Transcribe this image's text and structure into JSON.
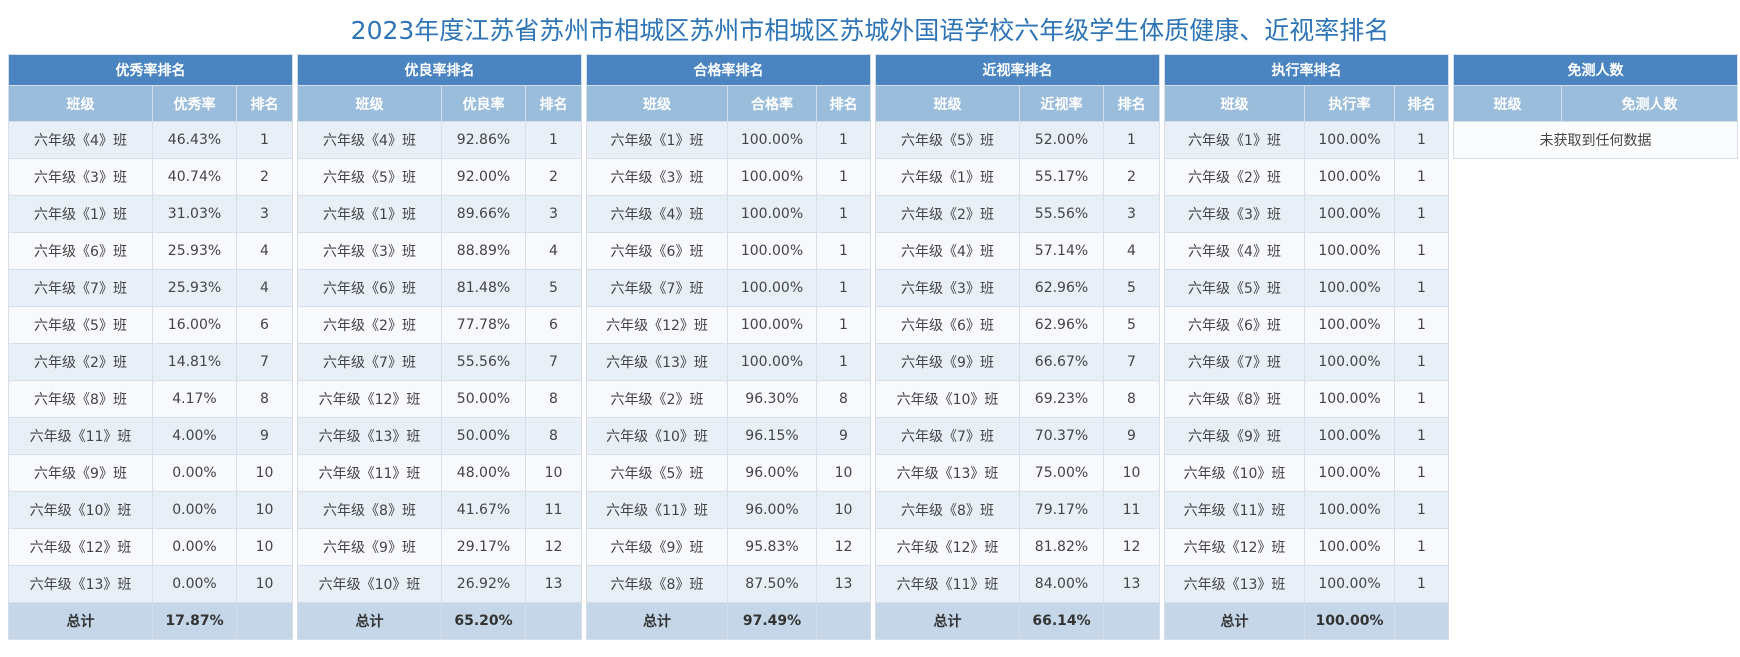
{
  "title": "2023年度江苏省苏州市相城区苏州市相城区苏城外国语学校六年级学生体质健康、近视率排名",
  "panels": [
    {
      "title": "优秀率排名",
      "headers": [
        "班级",
        "优秀率",
        "排名"
      ],
      "rows": [
        [
          "六年级《4》班",
          "46.43%",
          "1"
        ],
        [
          "六年级《3》班",
          "40.74%",
          "2"
        ],
        [
          "六年级《1》班",
          "31.03%",
          "3"
        ],
        [
          "六年级《6》班",
          "25.93%",
          "4"
        ],
        [
          "六年级《7》班",
          "25.93%",
          "4"
        ],
        [
          "六年级《5》班",
          "16.00%",
          "6"
        ],
        [
          "六年级《2》班",
          "14.81%",
          "7"
        ],
        [
          "六年级《8》班",
          "4.17%",
          "8"
        ],
        [
          "六年级《11》班",
          "4.00%",
          "9"
        ],
        [
          "六年级《9》班",
          "0.00%",
          "10"
        ],
        [
          "六年级《10》班",
          "0.00%",
          "10"
        ],
        [
          "六年级《12》班",
          "0.00%",
          "10"
        ],
        [
          "六年级《13》班",
          "0.00%",
          "10"
        ]
      ],
      "total": [
        "总计",
        "17.87%",
        ""
      ]
    },
    {
      "title": "优良率排名",
      "headers": [
        "班级",
        "优良率",
        "排名"
      ],
      "rows": [
        [
          "六年级《4》班",
          "92.86%",
          "1"
        ],
        [
          "六年级《5》班",
          "92.00%",
          "2"
        ],
        [
          "六年级《1》班",
          "89.66%",
          "3"
        ],
        [
          "六年级《3》班",
          "88.89%",
          "4"
        ],
        [
          "六年级《6》班",
          "81.48%",
          "5"
        ],
        [
          "六年级《2》班",
          "77.78%",
          "6"
        ],
        [
          "六年级《7》班",
          "55.56%",
          "7"
        ],
        [
          "六年级《12》班",
          "50.00%",
          "8"
        ],
        [
          "六年级《13》班",
          "50.00%",
          "8"
        ],
        [
          "六年级《11》班",
          "48.00%",
          "10"
        ],
        [
          "六年级《8》班",
          "41.67%",
          "11"
        ],
        [
          "六年级《9》班",
          "29.17%",
          "12"
        ],
        [
          "六年级《10》班",
          "26.92%",
          "13"
        ]
      ],
      "total": [
        "总计",
        "65.20%",
        ""
      ]
    },
    {
      "title": "合格率排名",
      "headers": [
        "班级",
        "合格率",
        "排名"
      ],
      "rows": [
        [
          "六年级《1》班",
          "100.00%",
          "1"
        ],
        [
          "六年级《3》班",
          "100.00%",
          "1"
        ],
        [
          "六年级《4》班",
          "100.00%",
          "1"
        ],
        [
          "六年级《6》班",
          "100.00%",
          "1"
        ],
        [
          "六年级《7》班",
          "100.00%",
          "1"
        ],
        [
          "六年级《12》班",
          "100.00%",
          "1"
        ],
        [
          "六年级《13》班",
          "100.00%",
          "1"
        ],
        [
          "六年级《2》班",
          "96.30%",
          "8"
        ],
        [
          "六年级《10》班",
          "96.15%",
          "9"
        ],
        [
          "六年级《5》班",
          "96.00%",
          "10"
        ],
        [
          "六年级《11》班",
          "96.00%",
          "10"
        ],
        [
          "六年级《9》班",
          "95.83%",
          "12"
        ],
        [
          "六年级《8》班",
          "87.50%",
          "13"
        ]
      ],
      "total": [
        "总计",
        "97.49%",
        ""
      ]
    },
    {
      "title": "近视率排名",
      "headers": [
        "班级",
        "近视率",
        "排名"
      ],
      "rows": [
        [
          "六年级《5》班",
          "52.00%",
          "1"
        ],
        [
          "六年级《1》班",
          "55.17%",
          "2"
        ],
        [
          "六年级《2》班",
          "55.56%",
          "3"
        ],
        [
          "六年级《4》班",
          "57.14%",
          "4"
        ],
        [
          "六年级《3》班",
          "62.96%",
          "5"
        ],
        [
          "六年级《6》班",
          "62.96%",
          "5"
        ],
        [
          "六年级《9》班",
          "66.67%",
          "7"
        ],
        [
          "六年级《10》班",
          "69.23%",
          "8"
        ],
        [
          "六年级《7》班",
          "70.37%",
          "9"
        ],
        [
          "六年级《13》班",
          "75.00%",
          "10"
        ],
        [
          "六年级《8》班",
          "79.17%",
          "11"
        ],
        [
          "六年级《12》班",
          "81.82%",
          "12"
        ],
        [
          "六年级《11》班",
          "84.00%",
          "13"
        ]
      ],
      "total": [
        "总计",
        "66.14%",
        ""
      ]
    },
    {
      "title": "执行率排名",
      "headers": [
        "班级",
        "执行率",
        "排名"
      ],
      "rows": [
        [
          "六年级《1》班",
          "100.00%",
          "1"
        ],
        [
          "六年级《2》班",
          "100.00%",
          "1"
        ],
        [
          "六年级《3》班",
          "100.00%",
          "1"
        ],
        [
          "六年级《4》班",
          "100.00%",
          "1"
        ],
        [
          "六年级《5》班",
          "100.00%",
          "1"
        ],
        [
          "六年级《6》班",
          "100.00%",
          "1"
        ],
        [
          "六年级《7》班",
          "100.00%",
          "1"
        ],
        [
          "六年级《8》班",
          "100.00%",
          "1"
        ],
        [
          "六年级《9》班",
          "100.00%",
          "1"
        ],
        [
          "六年级《10》班",
          "100.00%",
          "1"
        ],
        [
          "六年级《11》班",
          "100.00%",
          "1"
        ],
        [
          "六年级《12》班",
          "100.00%",
          "1"
        ],
        [
          "六年级《13》班",
          "100.00%",
          "1"
        ]
      ],
      "total": [
        "总计",
        "100.00%",
        ""
      ]
    }
  ],
  "exempt": {
    "title": "免测人数",
    "headers": [
      "班级",
      "免测人数"
    ],
    "empty_text": "未获取到任何数据"
  }
}
